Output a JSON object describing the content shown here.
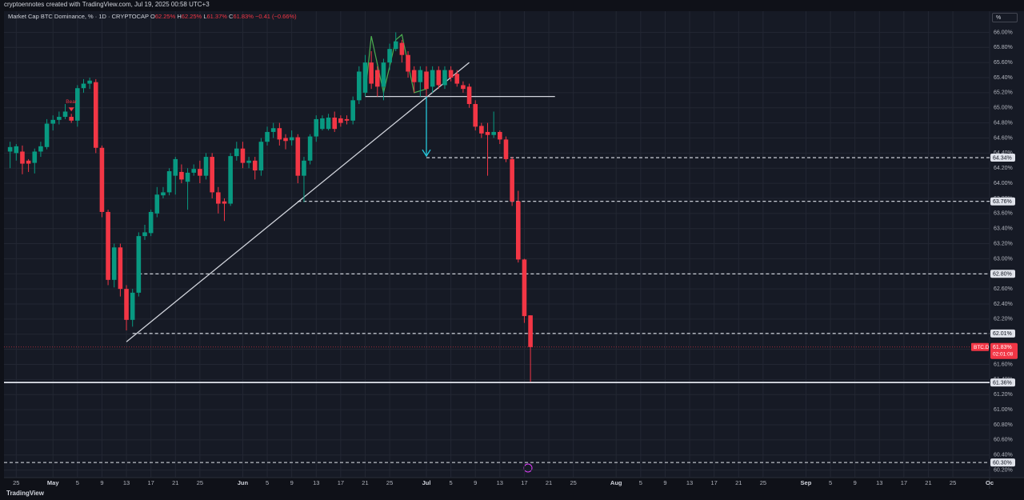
{
  "header": {
    "text": "cryptoennotes created with TradingView.com, Jul 19, 2025 00:58 UTC+3"
  },
  "footer": {
    "logo": "TradingView"
  },
  "chart_data": {
    "type": "candlestick",
    "title": "Market Cap BTC Dominance, % · 1D · CRYPTOCAP",
    "unit": "%",
    "ohlc_legend": [
      {
        "prefix": "O",
        "text": "62.25%"
      },
      {
        "prefix": "H",
        "text": "62.25%"
      },
      {
        "prefix": "L",
        "text": "61.37%"
      },
      {
        "prefix": "C",
        "text": "61.83%"
      },
      {
        "prefix": "",
        "text": "−0.41 (−0.66%)"
      }
    ],
    "up_color": "#089981",
    "down_color": "#f23645",
    "grid": true,
    "x": [
      "04-24",
      "04-25",
      "04-26",
      "04-27",
      "04-28",
      "04-29",
      "04-30",
      "05-01",
      "05-02",
      "05-03",
      "05-04",
      "05-05",
      "05-06",
      "05-07",
      "05-08",
      "05-09",
      "05-10",
      "05-11",
      "05-12",
      "05-13",
      "05-14",
      "05-15",
      "05-16",
      "05-17",
      "05-18",
      "05-19",
      "05-20",
      "05-21",
      "05-22",
      "05-23",
      "05-24",
      "05-25",
      "05-26",
      "05-27",
      "05-28",
      "05-29",
      "05-30",
      "05-31",
      "06-01",
      "06-02",
      "06-03",
      "06-04",
      "06-05",
      "06-06",
      "06-07",
      "06-08",
      "06-09",
      "06-10",
      "06-11",
      "06-12",
      "06-13",
      "06-14",
      "06-15",
      "06-16",
      "06-17",
      "06-18",
      "06-19",
      "06-20",
      "06-21",
      "06-22",
      "06-23",
      "06-24",
      "06-25",
      "06-26",
      "06-27",
      "06-28",
      "06-29",
      "06-30",
      "07-01",
      "07-02",
      "07-03",
      "07-04",
      "07-05",
      "07-06",
      "07-07",
      "07-08",
      "07-09",
      "07-10",
      "07-11",
      "07-12",
      "07-13",
      "07-14",
      "07-15",
      "07-16",
      "07-17",
      "07-18"
    ],
    "open": [
      64.42,
      64.4,
      64.42,
      64.3,
      64.27,
      64.42,
      64.48,
      64.79,
      64.84,
      64.88,
      64.88,
      64.83,
      65.26,
      65.32,
      65.34,
      64.47,
      63.62,
      62.72,
      63.15,
      62.6,
      62.19,
      62.55,
      63.3,
      63.34,
      63.6,
      63.84,
      63.88,
      64.1,
      64.15,
      64.02,
      64.14,
      64.19,
      64.1,
      64.35,
      63.88,
      63.76,
      63.73,
      64.36,
      64.46,
      64.27,
      64.3,
      64.17,
      64.55,
      64.68,
      64.73,
      64.6,
      64.57,
      64.61,
      64.1,
      64.3,
      64.62,
      64.72,
      64.72,
      64.87,
      64.86,
      64.85,
      64.83,
      65.1,
      65.2,
      65.6,
      65.5,
      65.28,
      65.6,
      65.78,
      65.86,
      65.7,
      65.5,
      65.34,
      65.48,
      65.28,
      65.5,
      65.3,
      65.5,
      65.45,
      65.3,
      65.28,
      65.05,
      64.76,
      64.68,
      64.64,
      64.68,
      64.58,
      64.32,
      63.76,
      62.99,
      62.25
    ],
    "high": [
      64.55,
      64.52,
      64.5,
      64.32,
      64.46,
      64.55,
      64.85,
      64.9,
      64.95,
      65.05,
      64.92,
      65.3,
      65.38,
      65.4,
      65.38,
      64.5,
      63.65,
      63.2,
      63.2,
      62.65,
      62.6,
      63.35,
      63.45,
      63.65,
      63.95,
      63.95,
      64.2,
      64.35,
      64.25,
      64.2,
      64.25,
      64.3,
      64.4,
      64.4,
      63.95,
      63.8,
      64.4,
      64.55,
      64.55,
      64.35,
      64.35,
      64.6,
      64.75,
      64.8,
      64.8,
      64.65,
      64.7,
      64.65,
      64.35,
      64.65,
      64.9,
      64.9,
      64.92,
      64.95,
      64.9,
      64.9,
      65.15,
      65.55,
      65.7,
      65.75,
      65.55,
      65.65,
      65.85,
      66.0,
      65.9,
      65.75,
      65.55,
      65.55,
      65.55,
      65.55,
      65.55,
      65.55,
      65.55,
      65.5,
      65.35,
      65.32,
      65.1,
      64.8,
      64.8,
      64.95,
      64.7,
      64.62,
      64.35,
      63.9,
      63.0,
      62.25
    ],
    "low": [
      64.2,
      64.3,
      64.12,
      64.15,
      64.13,
      64.35,
      64.45,
      64.7,
      64.78,
      64.85,
      64.8,
      64.75,
      65.2,
      65.25,
      64.4,
      63.55,
      62.65,
      62.62,
      62.5,
      62.05,
      62.1,
      62.5,
      63.25,
      63.3,
      63.55,
      63.8,
      63.84,
      63.85,
      64.0,
      63.65,
      64.1,
      64.0,
      64.05,
      63.8,
      63.6,
      63.5,
      63.7,
      64.3,
      64.2,
      64.2,
      64.05,
      64.1,
      64.5,
      64.6,
      64.5,
      64.45,
      64.5,
      64.0,
      63.75,
      64.25,
      64.55,
      64.7,
      64.7,
      64.68,
      64.75,
      64.78,
      64.78,
      65.05,
      65.15,
      65.25,
      65.15,
      65.1,
      65.5,
      65.75,
      65.6,
      65.4,
      65.2,
      65.15,
      65.15,
      65.2,
      65.25,
      65.25,
      65.35,
      65.28,
      65.2,
      65.0,
      64.7,
      64.6,
      64.1,
      64.6,
      64.52,
      64.28,
      63.7,
      62.95,
      62.15,
      61.37
    ],
    "close": [
      64.48,
      64.49,
      64.26,
      64.26,
      64.42,
      64.49,
      64.79,
      64.84,
      64.88,
      64.95,
      64.83,
      65.26,
      65.32,
      65.36,
      64.47,
      63.62,
      62.72,
      63.15,
      62.6,
      62.19,
      62.55,
      63.3,
      63.35,
      63.62,
      63.85,
      63.88,
      64.16,
      64.32,
      64.05,
      64.14,
      64.19,
      64.1,
      64.35,
      63.88,
      63.73,
      63.73,
      64.36,
      64.46,
      64.27,
      64.3,
      64.17,
      64.55,
      64.68,
      64.73,
      64.58,
      64.56,
      64.61,
      64.1,
      64.3,
      64.62,
      64.85,
      64.86,
      64.87,
      64.72,
      64.8,
      64.83,
      65.1,
      65.48,
      65.6,
      65.32,
      65.28,
      65.6,
      65.78,
      65.88,
      65.7,
      65.48,
      65.34,
      65.5,
      65.25,
      65.5,
      65.3,
      65.5,
      65.4,
      65.32,
      65.25,
      65.05,
      64.75,
      64.66,
      64.64,
      64.68,
      64.58,
      64.32,
      63.76,
      62.99,
      62.24,
      61.83
    ],
    "xlim": [
      "04-23",
      "10-01"
    ],
    "xticks": [
      {
        "value": "04-25",
        "label": "25"
      },
      {
        "value": "05-01",
        "label": "May"
      },
      {
        "value": "05-05",
        "label": "5"
      },
      {
        "value": "05-09",
        "label": "9"
      },
      {
        "value": "05-13",
        "label": "13"
      },
      {
        "value": "05-17",
        "label": "17"
      },
      {
        "value": "05-21",
        "label": "21"
      },
      {
        "value": "05-25",
        "label": "25"
      },
      {
        "value": "06-01",
        "label": "Jun"
      },
      {
        "value": "06-05",
        "label": "5"
      },
      {
        "value": "06-09",
        "label": "9"
      },
      {
        "value": "06-13",
        "label": "13"
      },
      {
        "value": "06-17",
        "label": "17"
      },
      {
        "value": "06-21",
        "label": "21"
      },
      {
        "value": "06-25",
        "label": "25"
      },
      {
        "value": "07-01",
        "label": "Jul"
      },
      {
        "value": "07-05",
        "label": "5"
      },
      {
        "value": "07-09",
        "label": "9"
      },
      {
        "value": "07-13",
        "label": "13"
      },
      {
        "value": "07-17",
        "label": "17"
      },
      {
        "value": "07-21",
        "label": "21"
      },
      {
        "value": "07-25",
        "label": "25"
      },
      {
        "value": "08-01",
        "label": "Aug"
      },
      {
        "value": "08-05",
        "label": "5"
      },
      {
        "value": "08-09",
        "label": "9"
      },
      {
        "value": "08-13",
        "label": "13"
      },
      {
        "value": "08-17",
        "label": "17"
      },
      {
        "value": "08-21",
        "label": "21"
      },
      {
        "value": "08-25",
        "label": "25"
      },
      {
        "value": "09-01",
        "label": "Sep"
      },
      {
        "value": "09-05",
        "label": "5"
      },
      {
        "value": "09-09",
        "label": "9"
      },
      {
        "value": "09-13",
        "label": "13"
      },
      {
        "value": "09-17",
        "label": "17"
      },
      {
        "value": "09-21",
        "label": "21"
      },
      {
        "value": "09-25",
        "label": "25"
      },
      {
        "value": "10-01",
        "label": "Oc"
      }
    ],
    "ylim": [
      60.1,
      66.28
    ],
    "yticks": [
      {
        "value": 60.2,
        "label": "60.20%"
      },
      {
        "value": 60.4,
        "label": "60.40%"
      },
      {
        "value": 60.6,
        "label": "60.60%"
      },
      {
        "value": 60.8,
        "label": "60.80%"
      },
      {
        "value": 61.0,
        "label": "61.00%"
      },
      {
        "value": 61.2,
        "label": "61.20%"
      },
      {
        "value": 61.4,
        "label": "61.40%"
      },
      {
        "value": 61.6,
        "label": "61.60%"
      },
      {
        "value": 61.8,
        "label": "61.80%"
      },
      {
        "value": 62.0,
        "label": "62.00%"
      },
      {
        "value": 62.2,
        "label": "62.20%"
      },
      {
        "value": 62.4,
        "label": "62.40%"
      },
      {
        "value": 62.6,
        "label": "62.60%"
      },
      {
        "value": 62.8,
        "label": "62.80%"
      },
      {
        "value": 63.0,
        "label": "63.00%"
      },
      {
        "value": 63.2,
        "label": "63.20%"
      },
      {
        "value": 63.4,
        "label": "63.40%"
      },
      {
        "value": 63.6,
        "label": "63.60%"
      },
      {
        "value": 63.8,
        "label": "63.80%"
      },
      {
        "value": 64.0,
        "label": "64.00%"
      },
      {
        "value": 64.2,
        "label": "64.20%"
      },
      {
        "value": 64.4,
        "label": "64.40%"
      },
      {
        "value": 64.6,
        "label": "64.60%"
      },
      {
        "value": 64.8,
        "label": "64.80%"
      },
      {
        "value": 65.0,
        "label": "65.00%"
      },
      {
        "value": 65.2,
        "label": "65.20%"
      },
      {
        "value": 65.4,
        "label": "65.40%"
      },
      {
        "value": 65.6,
        "label": "65.60%"
      },
      {
        "value": 65.8,
        "label": "65.80%"
      },
      {
        "value": 66.0,
        "label": "66.00%"
      }
    ],
    "levels": [
      {
        "value": 64.34,
        "label": "64.34%",
        "from": "07-01",
        "style": "dashed"
      },
      {
        "value": 63.76,
        "label": "63.76%",
        "from": "06-10",
        "style": "dashed"
      },
      {
        "value": 62.8,
        "label": "62.80%",
        "from": "05-15",
        "style": "dashed"
      },
      {
        "value": 62.01,
        "label": "62.01%",
        "from": "05-14",
        "style": "dashed"
      },
      {
        "value": 61.36,
        "label": "61.36%",
        "from": "04-23",
        "style": "solid"
      },
      {
        "value": 60.3,
        "label": "60.30%",
        "from": "04-23",
        "style": "dashed"
      }
    ],
    "last": {
      "value": 61.83,
      "label": "61.83%",
      "symbol": "BTC.D",
      "countdown": "02:01:08",
      "color": "#f23645"
    },
    "trendline": {
      "x": [
        "05-13",
        "07-08"
      ],
      "y": [
        61.9,
        65.6
      ],
      "color": "#d1d4dc"
    },
    "neckline": {
      "x": [
        "06-21",
        "07-22"
      ],
      "y": 65.15,
      "color": "#d1d4dc"
    },
    "arrow": {
      "x": "07-01",
      "y": [
        65.15,
        64.36
      ],
      "color": "#26c6da"
    },
    "pattern": {
      "x": [
        "06-21",
        "06-22",
        "06-24",
        "06-26",
        "06-27",
        "06-29",
        "07-01"
      ],
      "y": [
        65.18,
        65.95,
        65.2,
        65.9,
        65.97,
        65.2,
        65.25
      ],
      "color": "#4caf50"
    },
    "signals": [
      {
        "x": "05-04",
        "text": "Bear",
        "color": "#f23645"
      }
    ]
  }
}
